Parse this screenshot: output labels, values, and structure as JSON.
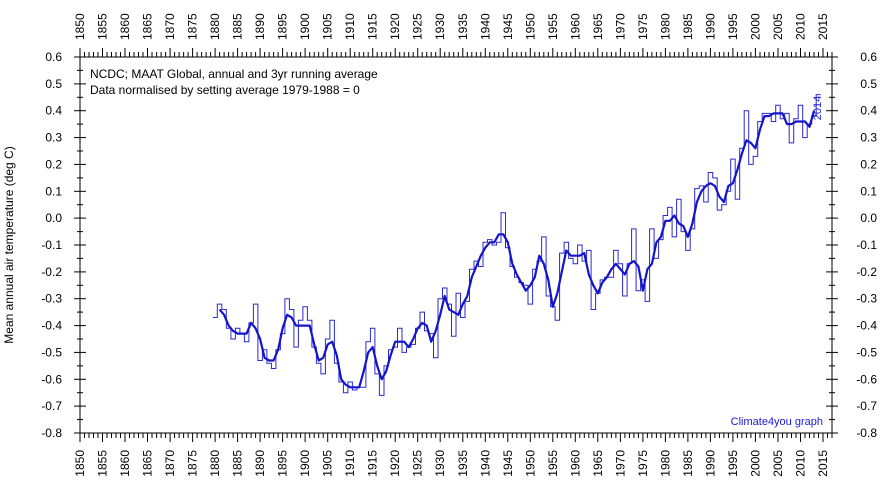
{
  "chart_data": {
    "type": "line",
    "title_line1": "NCDC; MAAT Global, annual and 3yr running average",
    "title_line2": "Data normalised by setting average 1979-1988 = 0",
    "ylabel": "Mean annual air temperature (deg C)",
    "xlabel": "",
    "xlim": [
      1850,
      2017
    ],
    "ylim": [
      -0.8,
      0.6
    ],
    "x_ticks_major": [
      1850,
      1855,
      1860,
      1865,
      1870,
      1875,
      1880,
      1885,
      1890,
      1895,
      1900,
      1905,
      1910,
      1915,
      1920,
      1925,
      1930,
      1935,
      1940,
      1945,
      1950,
      1955,
      1960,
      1965,
      1970,
      1975,
      1980,
      1985,
      1990,
      1995,
      2000,
      2005,
      2010,
      2015
    ],
    "y_ticks": [
      "0.6",
      "0.5",
      "0.4",
      "0.3",
      "0.2",
      "0.1",
      "0.0",
      "-0.1",
      "-0.2",
      "-0.3",
      "-0.4",
      "-0.5",
      "-0.6",
      "-0.7",
      "-0.8"
    ],
    "y_tick_values": [
      0.6,
      0.5,
      0.4,
      0.3,
      0.2,
      0.1,
      0.0,
      -0.1,
      -0.2,
      -0.3,
      -0.4,
      -0.5,
      -0.6,
      -0.7,
      -0.8
    ],
    "last_year_label": "2014",
    "credit": "Climate4you graph",
    "colors": {
      "annual": "#2a2ad0",
      "running": "#1414c8",
      "credit": "#1a1ad6"
    },
    "series": [
      {
        "name": "Annual",
        "style": "step",
        "x": [
          1880,
          1881,
          1882,
          1883,
          1884,
          1885,
          1886,
          1887,
          1888,
          1889,
          1890,
          1891,
          1892,
          1893,
          1894,
          1895,
          1896,
          1897,
          1898,
          1899,
          1900,
          1901,
          1902,
          1903,
          1904,
          1905,
          1906,
          1907,
          1908,
          1909,
          1910,
          1911,
          1912,
          1913,
          1914,
          1915,
          1916,
          1917,
          1918,
          1919,
          1920,
          1921,
          1922,
          1923,
          1924,
          1925,
          1926,
          1927,
          1928,
          1929,
          1930,
          1931,
          1932,
          1933,
          1934,
          1935,
          1936,
          1937,
          1938,
          1939,
          1940,
          1941,
          1942,
          1943,
          1944,
          1945,
          1946,
          1947,
          1948,
          1949,
          1950,
          1951,
          1952,
          1953,
          1954,
          1955,
          1956,
          1957,
          1958,
          1959,
          1960,
          1961,
          1962,
          1963,
          1964,
          1965,
          1966,
          1967,
          1968,
          1969,
          1970,
          1971,
          1972,
          1973,
          1974,
          1975,
          1976,
          1977,
          1978,
          1979,
          1980,
          1981,
          1982,
          1983,
          1984,
          1985,
          1986,
          1987,
          1988,
          1989,
          1990,
          1991,
          1992,
          1993,
          1994,
          1995,
          1996,
          1997,
          1998,
          1999,
          2000,
          2001,
          2002,
          2003,
          2004,
          2005,
          2006,
          2007,
          2008,
          2009,
          2010,
          2011,
          2012,
          2013,
          2014
        ],
        "values": [
          -0.37,
          -0.32,
          -0.34,
          -0.41,
          -0.45,
          -0.41,
          -0.43,
          -0.46,
          -0.39,
          -0.32,
          -0.53,
          -0.49,
          -0.54,
          -0.56,
          -0.49,
          -0.43,
          -0.3,
          -0.34,
          -0.48,
          -0.38,
          -0.33,
          -0.38,
          -0.48,
          -0.54,
          -0.58,
          -0.45,
          -0.38,
          -0.54,
          -0.61,
          -0.65,
          -0.61,
          -0.64,
          -0.63,
          -0.63,
          -0.46,
          -0.41,
          -0.58,
          -0.66,
          -0.55,
          -0.49,
          -0.48,
          -0.41,
          -0.5,
          -0.48,
          -0.47,
          -0.41,
          -0.35,
          -0.42,
          -0.43,
          -0.52,
          -0.3,
          -0.26,
          -0.32,
          -0.44,
          -0.28,
          -0.37,
          -0.31,
          -0.19,
          -0.16,
          -0.18,
          -0.09,
          -0.08,
          -0.1,
          -0.09,
          0.02,
          -0.11,
          -0.18,
          -0.22,
          -0.24,
          -0.25,
          -0.32,
          -0.19,
          -0.16,
          -0.07,
          -0.29,
          -0.33,
          -0.38,
          -0.13,
          -0.09,
          -0.15,
          -0.17,
          -0.1,
          -0.16,
          -0.12,
          -0.34,
          -0.28,
          -0.23,
          -0.22,
          -0.22,
          -0.12,
          -0.17,
          -0.29,
          -0.17,
          -0.04,
          -0.27,
          -0.23,
          -0.31,
          -0.04,
          -0.15,
          -0.08,
          0.01,
          0.04,
          -0.07,
          0.07,
          -0.05,
          -0.12,
          -0.04,
          0.11,
          0.12,
          0.06,
          0.17,
          0.15,
          0.03,
          0.05,
          0.1,
          0.22,
          0.07,
          0.26,
          0.4,
          0.2,
          0.23,
          0.36,
          0.39,
          0.39,
          0.36,
          0.42,
          0.37,
          0.39,
          0.28,
          0.37,
          0.42,
          0.3,
          0.35,
          0.38,
          0.46
        ]
      },
      {
        "name": "3yr running average",
        "style": "line",
        "x": [
          1881,
          1882,
          1883,
          1884,
          1885,
          1886,
          1887,
          1888,
          1889,
          1890,
          1891,
          1892,
          1893,
          1894,
          1895,
          1896,
          1897,
          1898,
          1899,
          1900,
          1901,
          1902,
          1903,
          1904,
          1905,
          1906,
          1907,
          1908,
          1909,
          1910,
          1911,
          1912,
          1913,
          1914,
          1915,
          1916,
          1917,
          1918,
          1919,
          1920,
          1921,
          1922,
          1923,
          1924,
          1925,
          1926,
          1927,
          1928,
          1929,
          1930,
          1931,
          1932,
          1933,
          1934,
          1935,
          1936,
          1937,
          1938,
          1939,
          1940,
          1941,
          1942,
          1943,
          1944,
          1945,
          1946,
          1947,
          1948,
          1949,
          1950,
          1951,
          1952,
          1953,
          1954,
          1955,
          1956,
          1957,
          1958,
          1959,
          1960,
          1961,
          1962,
          1963,
          1964,
          1965,
          1966,
          1967,
          1968,
          1969,
          1970,
          1971,
          1972,
          1973,
          1974,
          1975,
          1976,
          1977,
          1978,
          1979,
          1980,
          1981,
          1982,
          1983,
          1984,
          1985,
          1986,
          1987,
          1988,
          1989,
          1990,
          1991,
          1992,
          1993,
          1994,
          1995,
          1996,
          1997,
          1998,
          1999,
          2000,
          2001,
          2002,
          2003,
          2004,
          2005,
          2006,
          2007,
          2008,
          2009,
          2010,
          2011,
          2012,
          2013
        ],
        "values": [
          -0.34,
          -0.36,
          -0.4,
          -0.42,
          -0.43,
          -0.43,
          -0.43,
          -0.39,
          -0.41,
          -0.45,
          -0.52,
          -0.53,
          -0.53,
          -0.49,
          -0.41,
          -0.36,
          -0.37,
          -0.4,
          -0.4,
          -0.4,
          -0.4,
          -0.47,
          -0.53,
          -0.52,
          -0.47,
          -0.46,
          -0.51,
          -0.6,
          -0.62,
          -0.63,
          -0.63,
          -0.63,
          -0.57,
          -0.5,
          -0.48,
          -0.55,
          -0.6,
          -0.57,
          -0.51,
          -0.46,
          -0.46,
          -0.46,
          -0.48,
          -0.45,
          -0.41,
          -0.39,
          -0.4,
          -0.46,
          -0.42,
          -0.36,
          -0.29,
          -0.34,
          -0.35,
          -0.36,
          -0.32,
          -0.29,
          -0.22,
          -0.18,
          -0.14,
          -0.11,
          -0.09,
          -0.09,
          -0.06,
          -0.06,
          -0.09,
          -0.17,
          -0.21,
          -0.24,
          -0.27,
          -0.25,
          -0.22,
          -0.14,
          -0.17,
          -0.23,
          -0.33,
          -0.28,
          -0.2,
          -0.12,
          -0.14,
          -0.14,
          -0.14,
          -0.13,
          -0.21,
          -0.25,
          -0.28,
          -0.24,
          -0.22,
          -0.19,
          -0.17,
          -0.19,
          -0.21,
          -0.17,
          -0.16,
          -0.18,
          -0.27,
          -0.19,
          -0.17,
          -0.09,
          -0.07,
          -0.01,
          -0.01,
          0.01,
          -0.02,
          -0.03,
          -0.07,
          -0.02,
          0.06,
          0.1,
          0.12,
          0.13,
          0.12,
          0.08,
          0.06,
          0.12,
          0.13,
          0.18,
          0.24,
          0.29,
          0.28,
          0.26,
          0.33,
          0.38,
          0.38,
          0.39,
          0.39,
          0.39,
          0.35,
          0.35,
          0.36,
          0.36,
          0.36,
          0.34,
          0.4
        ]
      }
    ]
  }
}
